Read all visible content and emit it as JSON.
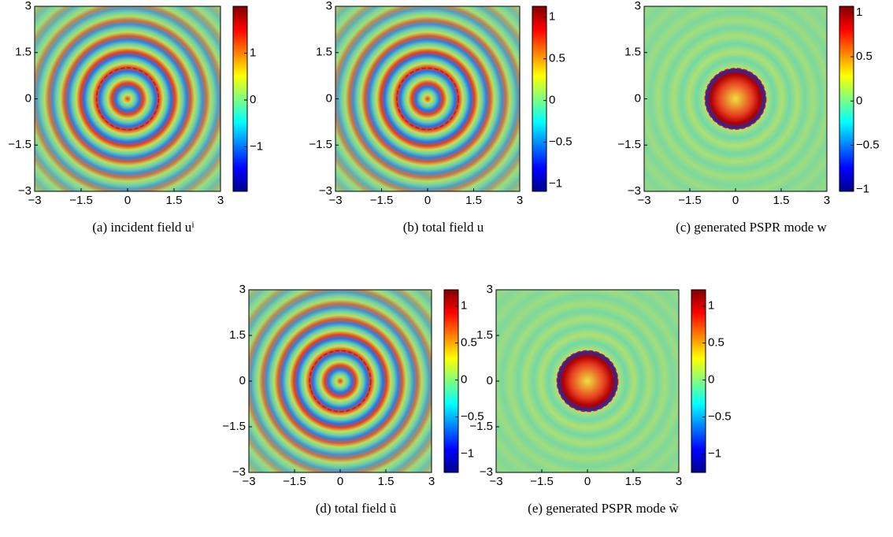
{
  "chart_data": [
    {
      "type": "heatmap",
      "caption": "(a) incident field uⁱ",
      "xlim": [
        -3,
        3
      ],
      "ylim": [
        -3,
        3
      ],
      "xticks": [
        {
          "value": -3,
          "label": "−3"
        },
        {
          "value": -1.5,
          "label": "−1.5"
        },
        0,
        1.5,
        3
      ],
      "yticks": [
        {
          "value": -3,
          "label": "−3"
        },
        {
          "value": -1.5,
          "label": "−1.5"
        },
        0,
        1.5,
        3
      ],
      "clim": [
        -1.95,
        2
      ],
      "cticks": [
        {
          "value": -1,
          "label": "−1"
        },
        0,
        1
      ]
    },
    {
      "type": "heatmap",
      "caption": "(b) total field u",
      "xlim": [
        -3,
        3
      ],
      "ylim": [
        -3,
        3
      ],
      "xticks": [
        {
          "value": -3,
          "label": "−3"
        },
        {
          "value": -1.5,
          "label": "−1.5"
        },
        0,
        1.5,
        3
      ],
      "yticks": [
        {
          "value": -3,
          "label": "−3"
        },
        {
          "value": -1.5,
          "label": "−1.5"
        },
        0,
        1.5,
        3
      ],
      "clim": [
        -1.09,
        1.13
      ],
      "cticks": [
        {
          "value": -1,
          "label": "−1"
        },
        {
          "value": -0.5,
          "label": "−0.5"
        },
        0,
        0.5,
        1
      ]
    },
    {
      "type": "heatmap",
      "caption": "(c) generated PSPR mode w",
      "xlim": [
        -3,
        3
      ],
      "ylim": [
        -3,
        3
      ],
      "xticks": [
        {
          "value": -3,
          "label": "−3"
        },
        {
          "value": -1.5,
          "label": "−1.5"
        },
        0,
        1.5,
        3
      ],
      "yticks": [
        {
          "value": -3,
          "label": "−3"
        },
        {
          "value": -1.5,
          "label": "−1.5"
        },
        0,
        1.5,
        3
      ],
      "clim": [
        -1.02,
        1.07
      ],
      "cticks": [
        {
          "value": -1,
          "label": "−1"
        },
        {
          "value": -0.5,
          "label": "−0.5"
        },
        0,
        0.5,
        1
      ]
    },
    {
      "type": "heatmap",
      "caption": "(d) total field ũ",
      "xlim": [
        -3,
        3
      ],
      "ylim": [
        -3,
        3
      ],
      "xticks": [
        {
          "value": -3,
          "label": "−3"
        },
        {
          "value": -1.5,
          "label": "−1.5"
        },
        0,
        1.5,
        3
      ],
      "yticks": [
        {
          "value": -3,
          "label": "−3"
        },
        {
          "value": -1.5,
          "label": "−1.5"
        },
        0,
        1.5,
        3
      ],
      "clim": [
        -1.25,
        1.22
      ],
      "cticks": [
        {
          "value": -1,
          "label": "−1"
        },
        {
          "value": -0.5,
          "label": "−0.5"
        },
        0,
        0.5,
        1
      ]
    },
    {
      "type": "heatmap",
      "caption": "(e) generated PSPR mode w̃",
      "xlim": [
        -3,
        3
      ],
      "ylim": [
        -3,
        3
      ],
      "xticks": [
        {
          "value": -3,
          "label": "−3"
        },
        {
          "value": -1.5,
          "label": "−1.5"
        },
        0,
        1.5,
        3
      ],
      "yticks": [
        {
          "value": -3,
          "label": "−3"
        },
        {
          "value": -1.5,
          "label": "−1.5"
        },
        0,
        1.5,
        3
      ],
      "clim": [
        -1.25,
        1.22
      ],
      "cticks": [
        {
          "value": -1,
          "label": "−1"
        },
        {
          "value": -0.5,
          "label": "−0.5"
        },
        0,
        0.5,
        1
      ]
    }
  ]
}
